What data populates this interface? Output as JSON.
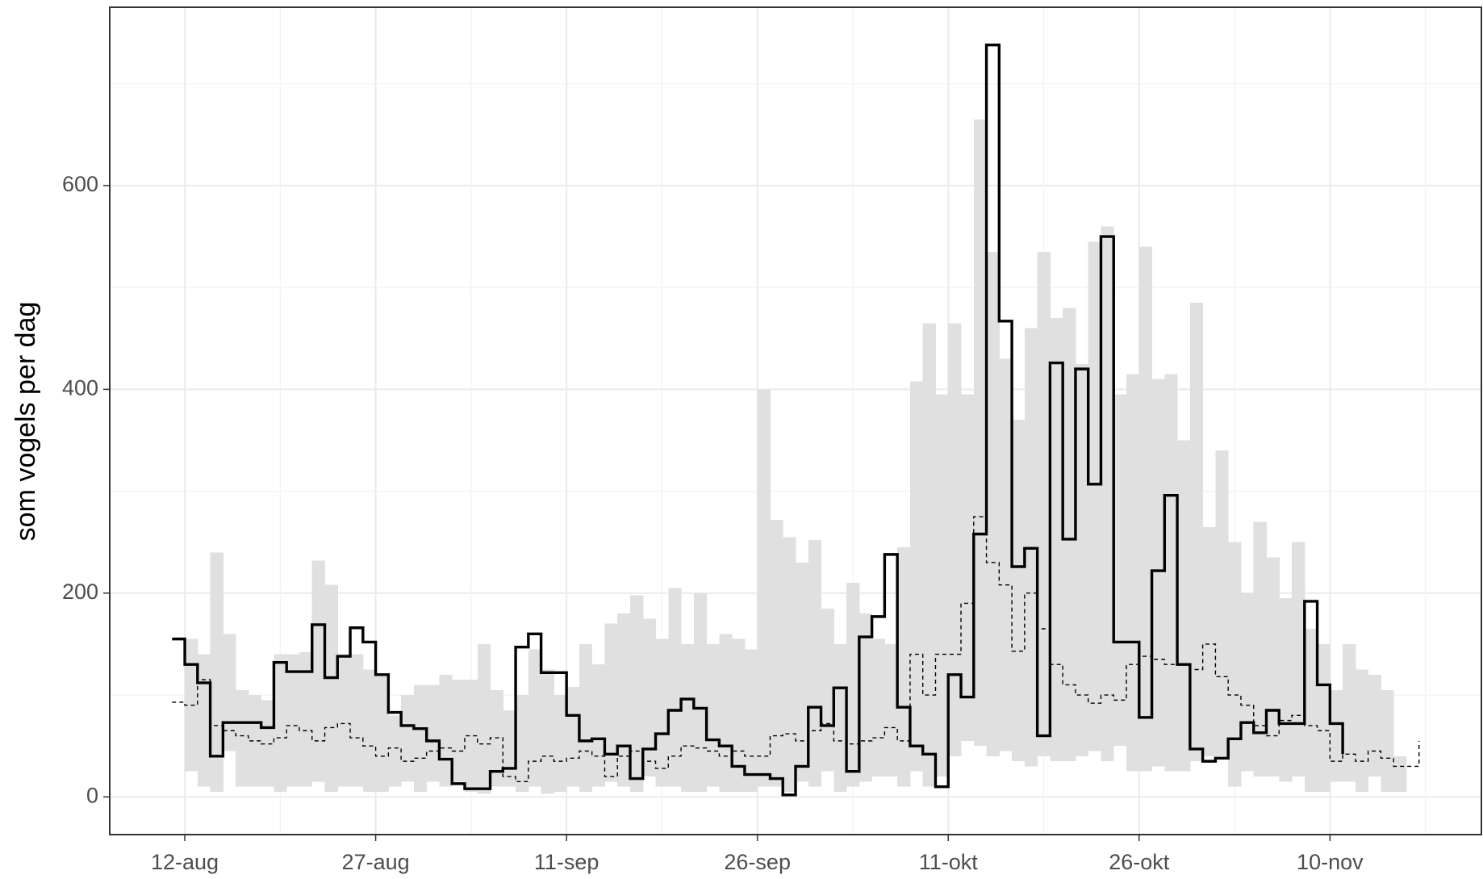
{
  "chart_data": {
    "type": "step",
    "y_label": "som vogels per dag",
    "x": [
      "11-aug",
      "12-aug",
      "13-aug",
      "14-aug",
      "15-aug",
      "16-aug",
      "17-aug",
      "18-aug",
      "19-aug",
      "20-aug",
      "21-aug",
      "22-aug",
      "23-aug",
      "24-aug",
      "25-aug",
      "26-aug",
      "27-aug",
      "28-aug",
      "29-aug",
      "30-aug",
      "31-aug",
      "1-sep",
      "2-sep",
      "3-sep",
      "4-sep",
      "5-sep",
      "6-sep",
      "7-sep",
      "8-sep",
      "9-sep",
      "10-sep",
      "11-sep",
      "12-sep",
      "13-sep",
      "14-sep",
      "15-sep",
      "16-sep",
      "17-sep",
      "18-sep",
      "19-sep",
      "20-sep",
      "21-sep",
      "22-sep",
      "23-sep",
      "24-sep",
      "25-sep",
      "26-sep",
      "27-sep",
      "28-sep",
      "29-sep",
      "30-sep",
      "1-okt",
      "2-okt",
      "3-okt",
      "4-okt",
      "5-okt",
      "6-okt",
      "7-okt",
      "8-okt",
      "9-okt",
      "10-okt",
      "11-okt",
      "12-okt",
      "13-okt",
      "14-okt",
      "15-okt",
      "16-okt",
      "17-okt",
      "18-okt",
      "19-okt",
      "20-okt",
      "21-okt",
      "22-okt",
      "23-okt",
      "24-okt",
      "25-okt",
      "26-okt",
      "27-okt",
      "28-okt",
      "29-okt",
      "30-okt",
      "31-okt",
      "1-nov",
      "2-nov",
      "3-nov",
      "4-nov",
      "5-nov",
      "6-nov",
      "7-nov",
      "8-nov",
      "9-nov",
      "10-nov",
      "11-nov",
      "12-nov",
      "13-nov",
      "14-nov",
      "15-nov",
      "16-nov",
      "17-nov"
    ],
    "xticks": [
      "12-aug",
      "27-aug",
      "11-sep",
      "26-sep",
      "11-okt",
      "26-okt",
      "10-nov"
    ],
    "ylim": [
      -37,
      775
    ],
    "yticks": [
      0,
      200,
      400,
      600
    ],
    "grid": true,
    "band": {
      "color": "#e0e0e0",
      "upper": [
        null,
        155,
        140,
        240,
        160,
        105,
        100,
        95,
        140,
        140,
        142,
        232,
        208,
        140,
        140,
        125,
        120,
        80,
        100,
        110,
        110,
        120,
        115,
        115,
        150,
        105,
        85,
        100,
        145,
        125,
        100,
        108,
        150,
        130,
        170,
        180,
        198,
        175,
        155,
        205,
        150,
        200,
        150,
        160,
        155,
        145,
        400,
        272,
        255,
        230,
        252,
        185,
        150,
        210,
        180,
        155,
        150,
        245,
        408,
        465,
        395,
        465,
        395,
        665,
        535,
        430,
        370,
        460,
        535,
        470,
        480,
        425,
        545,
        560,
        395,
        415,
        540,
        410,
        415,
        350,
        485,
        265,
        340,
        250,
        200,
        270,
        235,
        195,
        250,
        165,
        150,
        105,
        150,
        125,
        120,
        105,
        40,
        null,
        null
      ],
      "lower": [
        null,
        25,
        10,
        5,
        45,
        10,
        10,
        10,
        5,
        10,
        10,
        15,
        5,
        10,
        10,
        5,
        5,
        10,
        15,
        5,
        15,
        10,
        15,
        5,
        3,
        10,
        10,
        5,
        10,
        3,
        5,
        10,
        5,
        10,
        15,
        10,
        5,
        20,
        10,
        10,
        5,
        5,
        10,
        5,
        5,
        5,
        10,
        10,
        5,
        15,
        10,
        25,
        5,
        10,
        15,
        20,
        20,
        10,
        25,
        10,
        20,
        40,
        55,
        50,
        40,
        45,
        35,
        30,
        40,
        35,
        35,
        40,
        45,
        35,
        50,
        25,
        25,
        30,
        25,
        25,
        35,
        40,
        40,
        10,
        25,
        20,
        20,
        15,
        20,
        5,
        5,
        15,
        15,
        5,
        20,
        5,
        5,
        null,
        null
      ]
    },
    "series": [
      {
        "color": "#000000",
        "linestyle": "dashed",
        "values": [
          93,
          90,
          115,
          70,
          65,
          60,
          55,
          52,
          58,
          70,
          65,
          55,
          68,
          72,
          58,
          50,
          40,
          48,
          35,
          38,
          45,
          48,
          45,
          60,
          52,
          58,
          20,
          15,
          35,
          40,
          35,
          38,
          45,
          40,
          20,
          40,
          45,
          35,
          28,
          40,
          50,
          48,
          45,
          40,
          45,
          40,
          40,
          60,
          62,
          55,
          65,
          72,
          55,
          52,
          55,
          58,
          68,
          55,
          140,
          100,
          140,
          140,
          190,
          275,
          230,
          208,
          143,
          200,
          165,
          130,
          110,
          100,
          92,
          100,
          95,
          130,
          138,
          135,
          130,
          130,
          125,
          150,
          118,
          100,
          90,
          70,
          60,
          75,
          80,
          70,
          65,
          35,
          42,
          35,
          45,
          38,
          30,
          30,
          55
        ]
      },
      {
        "color": "#000000",
        "linestyle": "solid",
        "values": [
          155,
          130,
          112,
          40,
          73,
          73,
          73,
          68,
          132,
          123,
          123,
          169,
          117,
          138,
          166,
          152,
          120,
          83,
          70,
          67,
          55,
          37,
          13,
          8,
          8,
          25,
          28,
          147,
          160,
          122,
          122,
          80,
          55,
          57,
          42,
          50,
          18,
          47,
          62,
          85,
          96,
          87,
          56,
          50,
          30,
          22,
          22,
          18,
          2,
          30,
          88,
          70,
          107,
          25,
          157,
          177,
          238,
          88,
          50,
          42,
          10,
          120,
          98,
          258,
          738,
          467,
          226,
          244,
          60,
          426,
          253,
          420,
          307,
          550,
          152,
          152,
          78,
          222,
          296,
          130,
          47,
          35,
          38,
          57,
          73,
          63,
          85,
          72,
          72,
          192,
          110,
          72,
          42,
          null,
          null,
          null,
          null,
          null,
          null
        ]
      }
    ]
  }
}
